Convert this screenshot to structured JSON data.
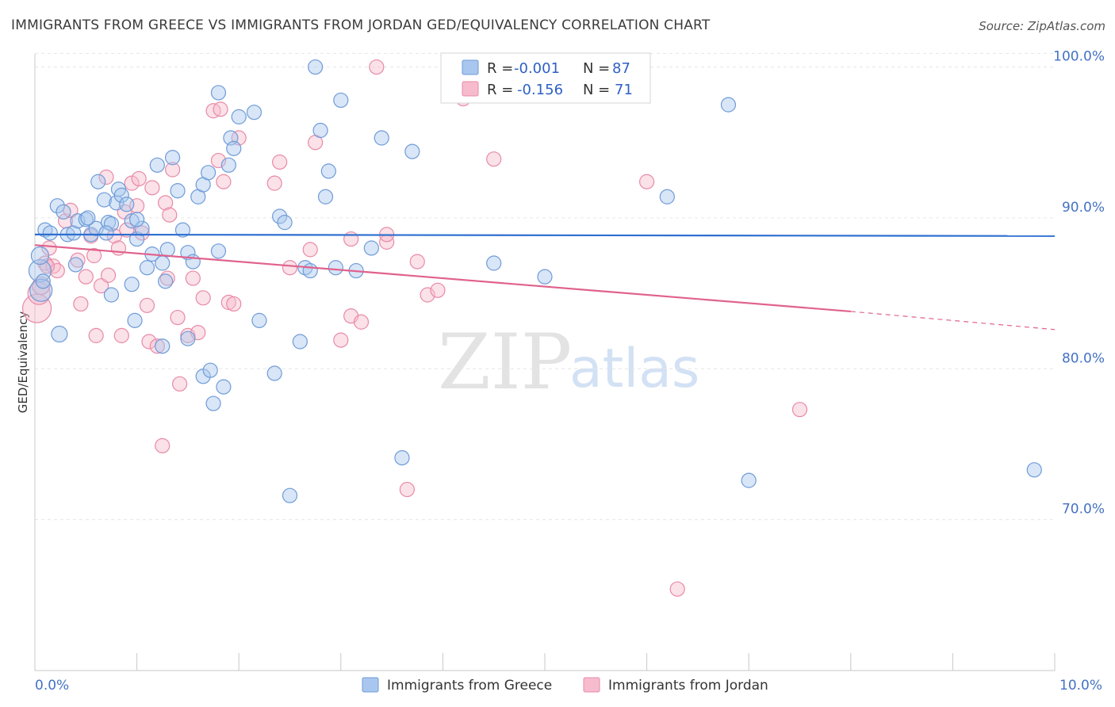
{
  "title": "IMMIGRANTS FROM GREECE VS IMMIGRANTS FROM JORDAN GED/EQUIVALENCY CORRELATION CHART",
  "source": "Source: ZipAtlas.com",
  "watermark": {
    "zip": "ZIP",
    "atlas": "atlas"
  },
  "colors": {
    "greece_fill": "#a9c7ee",
    "greece_stroke": "#6f9bd8",
    "greece_line": "#2e6fd0",
    "jordan_fill": "#f6bccd",
    "jordan_stroke": "#e88aa7",
    "jordan_line": "#e0628d",
    "axis_text": "#4472c4",
    "grid": "#e6e6e6"
  },
  "stats": {
    "greece": {
      "r_label": "R =",
      "r_value": "-0.001",
      "n_label": "N =",
      "n_value": "87"
    },
    "jordan": {
      "r_label": "R =",
      "r_value": "-0.156",
      "n_label": "N =",
      "n_value": "71"
    }
  },
  "chart_data": {
    "type": "scatter",
    "title": "IMMIGRANTS FROM GREECE VS IMMIGRANTS FROM JORDAN GED/EQUIVALENCY CORRELATION CHART",
    "xlabel": "",
    "ylabel": "GED/Equivalency",
    "xlim": [
      0,
      10
    ],
    "ylim": [
      60,
      101.5
    ],
    "x_tick_labels": [
      "0.0%",
      "10.0%"
    ],
    "y_ticks": [
      70,
      80,
      90,
      100
    ],
    "y_tick_labels": [
      "70.0%",
      "80.0%",
      "90.0%",
      "100.0%"
    ],
    "grid": true,
    "legend_position": "bottom-center",
    "series": [
      {
        "name": "Immigrants from Greece",
        "trend": {
          "x": [
            0,
            10
          ],
          "y": [
            88.9,
            88.8
          ]
        },
        "points": [
          [
            0.05,
            86.5
          ],
          [
            0.06,
            85.2
          ],
          [
            0.1,
            89.2
          ],
          [
            0.15,
            89.0
          ],
          [
            0.22,
            90.8
          ],
          [
            0.28,
            90.4
          ],
          [
            0.32,
            88.9
          ],
          [
            0.38,
            89.0
          ],
          [
            0.42,
            89.8
          ],
          [
            0.5,
            89.9
          ],
          [
            0.55,
            88.9
          ],
          [
            0.6,
            89.3
          ],
          [
            0.62,
            92.4
          ],
          [
            0.68,
            91.2
          ],
          [
            0.72,
            89.7
          ],
          [
            0.75,
            89.6
          ],
          [
            0.8,
            91.0
          ],
          [
            0.82,
            91.9
          ],
          [
            0.85,
            91.5
          ],
          [
            0.9,
            90.9
          ],
          [
            0.95,
            89.8
          ],
          [
            1.0,
            88.6
          ],
          [
            1.05,
            89.3
          ],
          [
            1.1,
            86.7
          ],
          [
            1.15,
            87.6
          ],
          [
            1.2,
            93.5
          ],
          [
            1.25,
            87.0
          ],
          [
            1.28,
            85.8
          ],
          [
            1.3,
            87.9
          ],
          [
            1.35,
            94.0
          ],
          [
            1.4,
            91.8
          ],
          [
            1.45,
            89.2
          ],
          [
            1.5,
            87.7
          ],
          [
            1.5,
            82.0
          ],
          [
            1.55,
            87.1
          ],
          [
            1.6,
            91.4
          ],
          [
            1.65,
            92.2
          ],
          [
            1.65,
            79.5
          ],
          [
            1.7,
            93.0
          ],
          [
            1.72,
            79.9
          ],
          [
            1.75,
            77.7
          ],
          [
            1.8,
            98.3
          ],
          [
            1.8,
            87.8
          ],
          [
            1.85,
            78.8
          ],
          [
            1.9,
            93.5
          ],
          [
            1.92,
            95.3
          ],
          [
            1.95,
            94.6
          ],
          [
            2.0,
            96.7
          ],
          [
            2.15,
            97.0
          ],
          [
            2.2,
            83.2
          ],
          [
            2.35,
            79.7
          ],
          [
            2.4,
            90.1
          ],
          [
            2.45,
            89.7
          ],
          [
            2.5,
            71.6
          ],
          [
            2.6,
            81.8
          ],
          [
            2.65,
            86.7
          ],
          [
            2.7,
            86.5
          ],
          [
            2.75,
            100.0
          ],
          [
            2.8,
            95.8
          ],
          [
            2.85,
            91.4
          ],
          [
            2.88,
            93.1
          ],
          [
            2.95,
            86.7
          ],
          [
            3.0,
            97.8
          ],
          [
            3.15,
            86.5
          ],
          [
            3.3,
            88.0
          ],
          [
            3.4,
            95.3
          ],
          [
            3.6,
            74.1
          ],
          [
            3.7,
            94.4
          ],
          [
            4.5,
            87.0
          ],
          [
            5.0,
            86.1
          ],
          [
            5.4,
            100.0
          ],
          [
            6.2,
            91.4
          ],
          [
            6.8,
            97.5
          ],
          [
            7.0,
            72.6
          ],
          [
            9.8,
            73.3
          ],
          [
            0.05,
            87.5
          ],
          [
            0.08,
            85.8
          ],
          [
            0.24,
            82.3
          ],
          [
            0.4,
            86.9
          ],
          [
            0.75,
            84.9
          ],
          [
            0.95,
            85.6
          ],
          [
            0.98,
            83.2
          ],
          [
            1.25,
            81.5
          ],
          [
            1.0,
            89.9
          ],
          [
            0.7,
            89.0
          ],
          [
            5.3,
            100.0
          ],
          [
            0.52,
            90.0
          ]
        ],
        "radii": [
          14,
          14,
          9,
          9,
          9,
          9,
          9,
          9,
          9,
          9,
          9,
          9,
          9,
          9,
          9,
          9,
          9,
          9,
          9,
          9,
          9,
          9,
          9,
          9,
          9,
          9,
          9,
          9,
          9,
          9,
          9,
          9,
          9,
          9,
          9,
          9,
          9,
          9,
          9,
          9,
          9,
          9,
          9,
          9,
          9,
          9,
          9,
          9,
          9,
          9,
          9,
          9,
          9,
          9,
          9,
          9,
          9,
          9,
          9,
          9,
          9,
          9,
          9,
          9,
          9,
          9,
          9,
          9,
          9,
          9,
          9,
          9,
          9,
          9,
          9,
          11,
          9,
          10,
          9,
          9,
          9,
          9,
          9,
          9,
          9,
          9,
          9
        ]
      },
      {
        "name": "Immigrants from Jordan",
        "trend": {
          "x": [
            0,
            8.0
          ],
          "y": [
            88.2,
            83.8
          ]
        },
        "trend_extension": {
          "x": [
            8.0,
            10
          ],
          "y": [
            83.8,
            82.6
          ]
        },
        "points": [
          [
            0.02,
            84.0
          ],
          [
            0.04,
            85.0
          ],
          [
            0.1,
            87.0
          ],
          [
            0.14,
            88.0
          ],
          [
            0.18,
            86.8
          ],
          [
            0.22,
            86.5
          ],
          [
            0.3,
            89.8
          ],
          [
            0.35,
            90.5
          ],
          [
            0.42,
            87.2
          ],
          [
            0.45,
            84.3
          ],
          [
            0.5,
            86.1
          ],
          [
            0.55,
            88.8
          ],
          [
            0.58,
            87.5
          ],
          [
            0.6,
            82.2
          ],
          [
            0.65,
            85.5
          ],
          [
            0.7,
            92.7
          ],
          [
            0.72,
            86.2
          ],
          [
            0.78,
            88.8
          ],
          [
            0.82,
            88.0
          ],
          [
            0.85,
            82.2
          ],
          [
            0.88,
            90.4
          ],
          [
            0.9,
            89.2
          ],
          [
            0.95,
            92.3
          ],
          [
            1.0,
            90.8
          ],
          [
            1.02,
            92.6
          ],
          [
            1.05,
            89.0
          ],
          [
            1.1,
            84.2
          ],
          [
            1.12,
            81.8
          ],
          [
            1.15,
            92.0
          ],
          [
            1.2,
            81.5
          ],
          [
            1.25,
            74.9
          ],
          [
            1.28,
            91.0
          ],
          [
            1.3,
            86.0
          ],
          [
            1.32,
            90.2
          ],
          [
            1.35,
            93.2
          ],
          [
            1.4,
            83.4
          ],
          [
            1.42,
            79.0
          ],
          [
            1.5,
            82.2
          ],
          [
            1.55,
            86.0
          ],
          [
            1.6,
            82.4
          ],
          [
            1.65,
            84.7
          ],
          [
            1.75,
            97.1
          ],
          [
            1.8,
            93.8
          ],
          [
            1.82,
            97.2
          ],
          [
            1.85,
            92.4
          ],
          [
            1.9,
            84.4
          ],
          [
            1.95,
            84.3
          ],
          [
            2.0,
            95.3
          ],
          [
            2.35,
            92.3
          ],
          [
            2.4,
            93.7
          ],
          [
            2.5,
            86.7
          ],
          [
            2.7,
            87.9
          ],
          [
            2.75,
            95.0
          ],
          [
            3.0,
            81.9
          ],
          [
            3.1,
            83.5
          ],
          [
            3.1,
            88.6
          ],
          [
            3.2,
            83.1
          ],
          [
            3.35,
            100.0
          ],
          [
            3.45,
            88.4
          ],
          [
            3.45,
            88.9
          ],
          [
            3.65,
            72.0
          ],
          [
            3.75,
            87.1
          ],
          [
            3.85,
            84.9
          ],
          [
            3.95,
            85.2
          ],
          [
            4.2,
            97.9
          ],
          [
            4.5,
            93.9
          ],
          [
            6.0,
            92.4
          ],
          [
            6.3,
            65.4
          ],
          [
            7.5,
            77.3
          ],
          [
            0.06,
            85.5
          ],
          [
            0.12,
            86.8
          ]
        ],
        "radii": [
          18,
          14,
          9,
          9,
          9,
          9,
          9,
          9,
          9,
          9,
          9,
          9,
          9,
          9,
          9,
          9,
          9,
          9,
          9,
          9,
          9,
          9,
          9,
          9,
          9,
          9,
          9,
          9,
          9,
          9,
          9,
          9,
          9,
          9,
          9,
          9,
          9,
          9,
          9,
          9,
          9,
          9,
          9,
          9,
          9,
          9,
          9,
          9,
          9,
          9,
          9,
          9,
          9,
          9,
          9,
          9,
          9,
          9,
          9,
          9,
          9,
          9,
          9,
          9,
          9,
          9,
          9,
          9,
          9,
          11,
          9
        ]
      }
    ]
  }
}
